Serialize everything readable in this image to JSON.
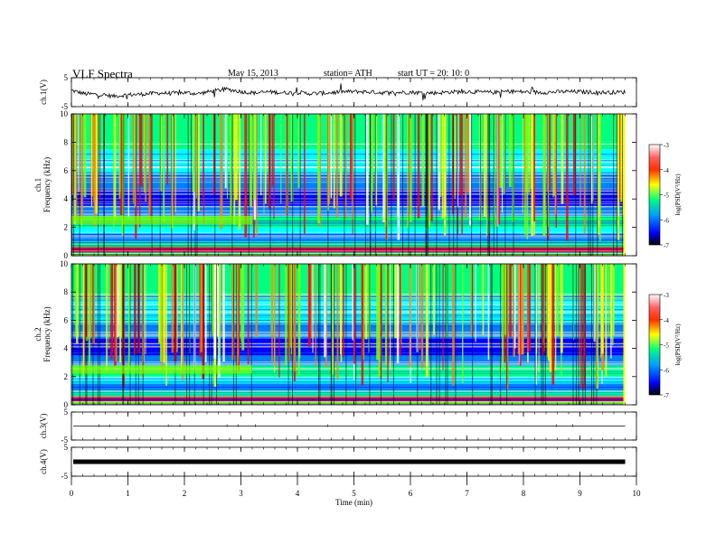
{
  "header": {
    "title": "VLF  Spectra",
    "date": "May 15, 2013",
    "station": "station= ATH",
    "start": "start  UT =   20: 10: 0"
  },
  "chart_data": [
    {
      "type": "line",
      "panel": "ch1-waveform",
      "ylabel": "ch.1(V)",
      "yticks": [
        "5",
        "-5"
      ],
      "ylim": [
        -5,
        5
      ],
      "x": [
        0,
        0.25,
        0.5,
        0.75,
        1,
        1.25,
        1.5,
        1.75,
        2,
        2.25,
        2.5,
        2.75,
        3,
        3.25,
        3.5,
        3.75,
        4,
        4.25,
        4.5,
        4.75,
        5,
        5.25,
        5.5,
        5.75,
        6,
        6.25,
        6.5,
        6.75,
        7,
        7.25,
        7.5,
        7.75,
        8,
        8.25,
        8.5,
        8.75,
        9,
        9.25,
        9.5,
        9.75
      ],
      "values": [
        0.6,
        -0.6,
        -0.8,
        -1.4,
        -0.9,
        -0.7,
        -0.3,
        -0.4,
        -0.2,
        -0.5,
        0.4,
        1.0,
        0.2,
        -0.3,
        0.1,
        -0.2,
        -0.1,
        -0.5,
        -0.3,
        0.1,
        0.2,
        0.1,
        -0.2,
        -0.1,
        0.0,
        -0.3,
        -0.2,
        0.1,
        0.2,
        0.0,
        -0.1,
        0.3,
        0.1,
        -0.1,
        0.0,
        0.2,
        0.1,
        0.0,
        -0.1,
        0.0
      ],
      "color": "#000000"
    },
    {
      "type": "heatmap",
      "panel": "ch1-spectrogram",
      "ylabel": "ch.1\nFrequency  (kHz)",
      "yticks": [
        "0",
        "2",
        "4",
        "6",
        "8",
        "10"
      ],
      "ylim": [
        0,
        10
      ],
      "colorbar_label": "log(PSD(V²/Hz)",
      "colorbar_ticks": [
        "-3",
        "-4",
        "-5",
        "-6",
        "-7"
      ],
      "clim": [
        -7,
        -3
      ]
    },
    {
      "type": "heatmap",
      "panel": "ch2-spectrogram",
      "ylabel": "ch.2\nFrequency  (kHz)",
      "yticks": [
        "0",
        "2",
        "4",
        "6",
        "8",
        "10"
      ],
      "ylim": [
        0,
        10
      ],
      "colorbar_label": "log(PSD(V²/Hz)",
      "colorbar_ticks": [
        "-3",
        "-4",
        "-5",
        "-6",
        "-7"
      ],
      "clim": [
        -7,
        -3
      ]
    },
    {
      "type": "line",
      "panel": "ch3-waveform",
      "ylabel": "ch.3(V)",
      "yticks": [
        "5",
        "-5"
      ],
      "ylim": [
        -5,
        5
      ],
      "x": [
        0,
        9.8
      ],
      "values": [
        0,
        0
      ],
      "color": "#000000"
    },
    {
      "type": "line",
      "panel": "ch4-waveform",
      "ylabel": "ch.4(V)",
      "yticks": [
        "5",
        "-5"
      ],
      "ylim": [
        -5,
        5
      ],
      "x": [
        0,
        9.8
      ],
      "values": [
        0,
        0
      ],
      "color": "#000000"
    }
  ],
  "x_axis": {
    "label": "Time  (min)",
    "ticks": [
      "0",
      "1",
      "2",
      "3",
      "4",
      "5",
      "6",
      "7",
      "8",
      "9",
      "10"
    ],
    "xlim": [
      0,
      10
    ],
    "data_end": 9.8
  },
  "colormap": [
    "#000080",
    "#0000ff",
    "#0080ff",
    "#00ffff",
    "#00ff80",
    "#80ff00",
    "#ffff00",
    "#ff8000",
    "#ff0000",
    "#ffffff"
  ]
}
